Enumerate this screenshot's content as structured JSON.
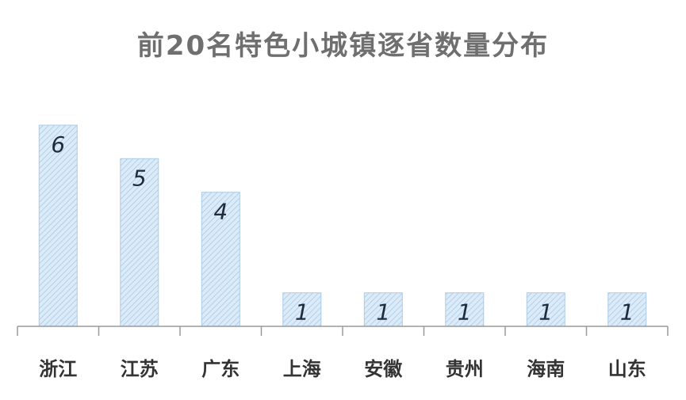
{
  "chart_data": {
    "type": "bar",
    "title": "前20名特色小城镇逐省数量分布",
    "categories": [
      "浙江",
      "江苏",
      "广东",
      "上海",
      "安徽",
      "贵州",
      "海南",
      "山东"
    ],
    "values": [
      6,
      5,
      4,
      1,
      1,
      1,
      1,
      1
    ],
    "ylim": [
      0,
      6
    ],
    "grid": false,
    "bar_color": "#cfe3f4",
    "bar_stroke": "#a9cbe8",
    "axis_color": "#9a9a9a"
  }
}
